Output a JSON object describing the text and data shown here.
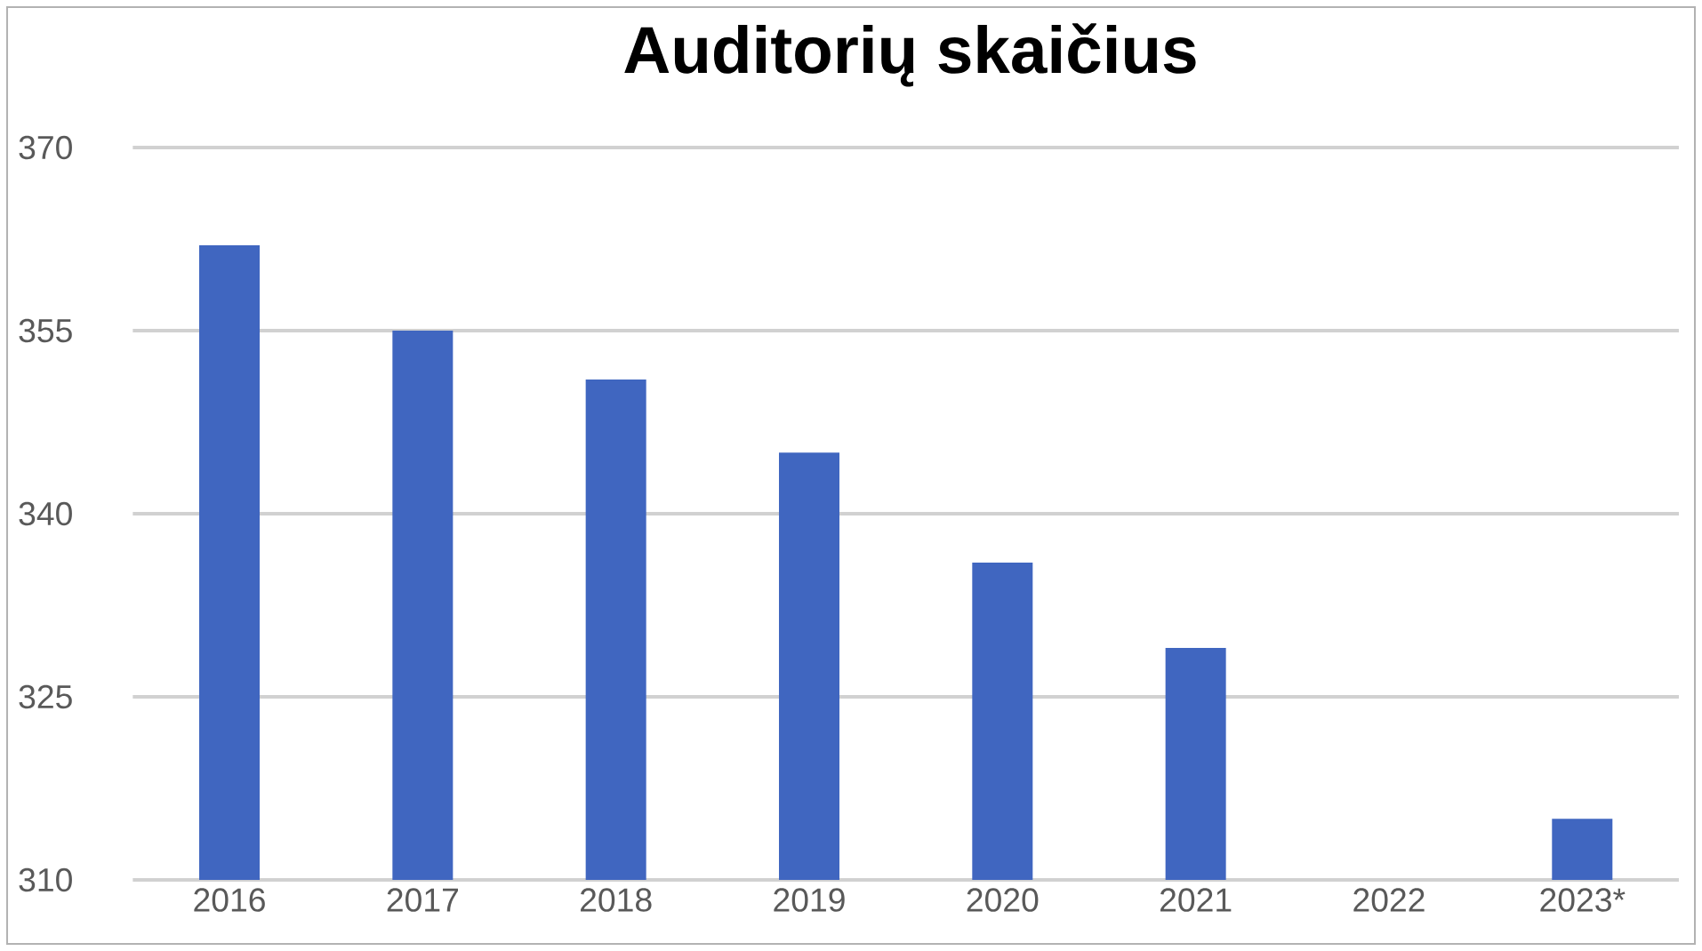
{
  "chart_data": {
    "type": "bar",
    "title": "Auditorių skaičius",
    "categories": [
      "2016",
      "2017",
      "2018",
      "2019",
      "2020",
      "2021",
      "2022",
      "2023*"
    ],
    "values": [
      362,
      355,
      351,
      345,
      336,
      329,
      null,
      315
    ],
    "color": "#4066c0",
    "ylim": [
      310,
      370
    ],
    "yticks": [
      310,
      325,
      340,
      355,
      370
    ],
    "grid": "y"
  }
}
